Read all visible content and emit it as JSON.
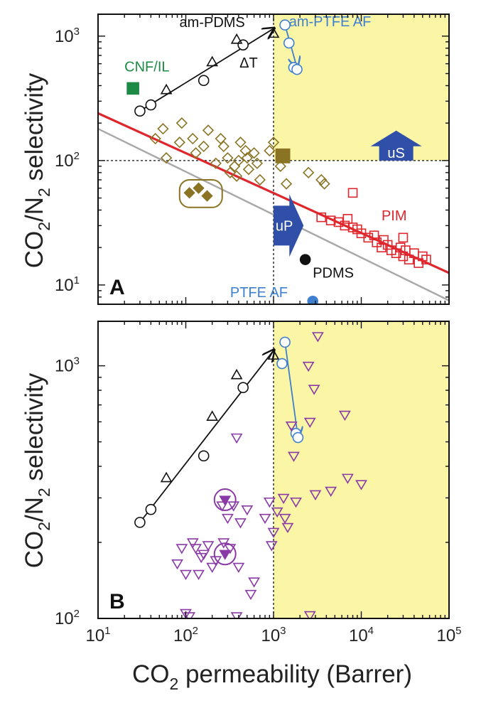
{
  "chart_data": {
    "type": "scatter",
    "xlabel": {
      "main": "CO",
      "sub": "2",
      "rest": " permeability (Barrer)"
    },
    "ylabel": {
      "pre": "CO",
      "sub1": "2",
      "mid": "/N",
      "sub2": "2",
      "post": " selectivity"
    },
    "xscale": "log",
    "yscale": "log",
    "xlim": [
      10,
      100000
    ],
    "x_ticks": [
      {
        "v": 10,
        "base": "10",
        "exp": "1"
      },
      {
        "v": 100,
        "base": "10",
        "exp": "2"
      },
      {
        "v": 1000,
        "base": "10",
        "exp": "3"
      },
      {
        "v": 10000,
        "base": "10",
        "exp": "4"
      },
      {
        "v": 100000,
        "base": "10",
        "exp": "5"
      }
    ],
    "colors": {
      "highlight": "#fbf5a6",
      "black": "#111111",
      "am_ptfe": "#3f7fd0",
      "green": "#1d8a46",
      "olive": "#8a7424",
      "olive_fill": "#8a7424",
      "red": "#e0262d",
      "gray": "#a8a8a8",
      "blue_arrow": "#2f4fa8",
      "purple": "#8a3aa6"
    },
    "panels": [
      {
        "letter": "A",
        "ylim": [
          7,
          1500
        ],
        "y_ticks": [
          {
            "v": 10,
            "base": "10",
            "exp": "1"
          },
          {
            "v": 100,
            "base": "10",
            "exp": "2"
          },
          {
            "v": 1000,
            "base": "10",
            "exp": "3"
          }
        ],
        "highlight_region": {
          "x_from": 1000,
          "y_from": 100
        },
        "dotted_lines": {
          "x": 1000,
          "y": 100
        },
        "upper_bound_lines": [
          {
            "name": "red line",
            "color": "red",
            "points": [
              [
                10,
                240
              ],
              [
                100000,
                12.5
              ]
            ]
          },
          {
            "name": "gray line",
            "color": "gray",
            "points": [
              [
                10,
                180
              ],
              [
                100000,
                7.5
              ]
            ]
          }
        ],
        "series": [
          {
            "marker": "circle",
            "color": "black",
            "points": [
              [
                30,
                250
              ],
              [
                40,
                280
              ],
              [
                160,
                440
              ],
              [
                450,
                850
              ]
            ]
          },
          {
            "marker": "triangle",
            "color": "black",
            "points": [
              [
                60,
                370
              ],
              [
                200,
                620
              ],
              [
                380,
                940
              ],
              [
                1000,
                1050
              ]
            ]
          },
          {
            "marker": "circle",
            "color": "am_ptfe",
            "points": [
              [
                1350,
                1230
              ],
              [
                1500,
                880
              ],
              [
                1700,
                560
              ],
              [
                1850,
                540
              ]
            ]
          },
          {
            "marker": "square-filled",
            "color": "green",
            "points": [
              [
                25,
                380
              ]
            ]
          },
          {
            "marker": "diamond",
            "color": "olive",
            "points": [
              [
                45,
                150
              ],
              [
                55,
                180
              ],
              [
                60,
                105
              ],
              [
                85,
                140
              ],
              [
                90,
                200
              ],
              [
                120,
                150
              ],
              [
                130,
                115
              ],
              [
                160,
                130
              ],
              [
                180,
                175
              ],
              [
                220,
                95
              ],
              [
                250,
                150
              ],
              [
                270,
                130
              ],
              [
                300,
                105
              ],
              [
                320,
                80
              ],
              [
                360,
                90
              ],
              [
                380,
                75
              ],
              [
                400,
                100
              ],
              [
                420,
                140
              ],
              [
                480,
                120
              ],
              [
                500,
                105
              ],
              [
                520,
                85
              ],
              [
                600,
                115
              ],
              [
                650,
                95
              ],
              [
                700,
                70
              ],
              [
                900,
                120
              ],
              [
                1000,
                140
              ],
              [
                1200,
                90
              ],
              [
                1400,
                65
              ],
              [
                2500,
                80
              ],
              [
                3500,
                70
              ],
              [
                3800,
                65
              ]
            ]
          },
          {
            "marker": "diamond-filled",
            "color": "olive",
            "points": [
              [
                110,
                55
              ],
              [
                140,
                60
              ],
              [
                175,
                52
              ]
            ]
          },
          {
            "marker": "square",
            "color": "red",
            "points": [
              [
                3500,
                35
              ],
              [
                4500,
                33
              ],
              [
                5500,
                32
              ],
              [
                6500,
                30
              ],
              [
                7000,
                34
              ],
              [
                8000,
                29
              ],
              [
                9000,
                28
              ],
              [
                10000,
                26
              ],
              [
                12000,
                24
              ],
              [
                14000,
                25
              ],
              [
                15000,
                22
              ],
              [
                17000,
                20
              ],
              [
                18000,
                23
              ],
              [
                20000,
                21
              ],
              [
                22000,
                19
              ],
              [
                25000,
                18
              ],
              [
                28000,
                20
              ],
              [
                30000,
                17
              ],
              [
                32000,
                19
              ],
              [
                35000,
                16
              ],
              [
                40000,
                18
              ],
              [
                45000,
                15
              ],
              [
                50000,
                17
              ],
              [
                55000,
                16
              ],
              [
                8000,
                55
              ],
              [
                30000,
                24
              ]
            ]
          },
          {
            "marker": "circle-filled",
            "color": "black",
            "points": [
              [
                2300,
                16
              ]
            ]
          },
          {
            "marker": "circle-filled",
            "color": "am_ptfe",
            "points": [
              [
                2800,
                7.4
              ]
            ]
          }
        ],
        "trend_arrows": [
          {
            "color": "black",
            "points": [
              [
                30,
                250
              ],
              [
                1000,
                1150
              ]
            ]
          },
          {
            "color": "am_ptfe",
            "points": [
              [
                1350,
                1230
              ],
              [
                1850,
                560
              ]
            ]
          }
        ],
        "olive_square": {
          "x": [
            1050,
            1550
          ],
          "y": [
            95,
            125
          ]
        },
        "group_box": {
          "x": [
            85,
            260
          ],
          "y": [
            42,
            70
          ]
        },
        "uS_arrow": {
          "x_center": 25000,
          "y_base": 100,
          "y_top": 165,
          "label": "uS"
        },
        "uP_arrow": {
          "x_left": 1000,
          "x_tip": 2200,
          "y_center": 30,
          "label": "uP"
        },
        "annotations": [
          {
            "text": "am-PDMS",
            "x": 200,
            "y": 1180,
            "color": "black",
            "anchor": "middle"
          },
          {
            "text": "am-PTFE AF",
            "x": 1500,
            "y": 1200,
            "color": "am_ptfe",
            "anchor": "start"
          },
          {
            "text": "ΔT",
            "x": 520,
            "y": 560,
            "color": "black",
            "anchor": "middle"
          },
          {
            "text": "CNF/IL",
            "x": 20,
            "y": 520,
            "color": "green",
            "anchor": "start"
          },
          {
            "text": "PIM",
            "x": 17000,
            "y": 33,
            "color": "red",
            "anchor": "start"
          },
          {
            "text": "PDMS",
            "x": 2800,
            "y": 11.5,
            "color": "black",
            "anchor": "start"
          },
          {
            "text": "PTFE AF",
            "x": 320,
            "y": 8.0,
            "color": "am_ptfe",
            "anchor": "start"
          }
        ]
      },
      {
        "letter": "B",
        "ylim": [
          100,
          1500
        ],
        "y_ticks": [
          {
            "v": 100,
            "base": "10",
            "exp": "2"
          },
          {
            "v": 1000,
            "base": "10",
            "exp": "3"
          }
        ],
        "highlight_region": {
          "x_from": 1000,
          "y_from": 100
        },
        "dotted_lines": {
          "x": 1000
        },
        "series": [
          {
            "marker": "circle",
            "color": "black",
            "points": [
              [
                30,
                240
              ],
              [
                40,
                270
              ],
              [
                160,
                440
              ],
              [
                450,
                820
              ]
            ]
          },
          {
            "marker": "triangle",
            "color": "black",
            "points": [
              [
                60,
                360
              ],
              [
                200,
                630
              ],
              [
                380,
                920
              ],
              [
                1000,
                1100
              ]
            ]
          },
          {
            "marker": "circle",
            "color": "am_ptfe",
            "points": [
              [
                1250,
                1020
              ],
              [
                1350,
                1240
              ],
              [
                1800,
                540
              ],
              [
                1900,
                520
              ]
            ]
          },
          {
            "marker": "triangle-down",
            "color": "purple",
            "points": [
              [
                80,
                165
              ],
              [
                90,
                190
              ],
              [
                100,
                150
              ],
              [
                120,
                200
              ],
              [
                130,
                190
              ],
              [
                140,
                150
              ],
              [
                150,
                175
              ],
              [
                160,
                180
              ],
              [
                180,
                195
              ],
              [
                200,
                160
              ],
              [
                220,
                170
              ],
              [
                260,
                280
              ],
              [
                270,
                200
              ],
              [
                300,
                250
              ],
              [
                320,
                190
              ],
              [
                350,
                280
              ],
              [
                380,
                520
              ],
              [
                400,
                160
              ],
              [
                420,
                240
              ],
              [
                500,
                270
              ],
              [
                550,
                125
              ],
              [
                600,
                140
              ],
              [
                800,
                250
              ],
              [
                900,
                290
              ],
              [
                950,
                195
              ],
              [
                1000,
                220
              ],
              [
                1100,
                265
              ],
              [
                1300,
                300
              ],
              [
                1350,
                250
              ],
              [
                1450,
                230
              ],
              [
                1600,
                580
              ],
              [
                1700,
                440
              ],
              [
                1800,
                290
              ],
              [
                2500,
                1000
              ],
              [
                2600,
                600
              ],
              [
                2900,
                810
              ],
              [
                3000,
                310
              ],
              [
                3200,
                1310
              ],
              [
                4500,
                320
              ],
              [
                6500,
                640
              ],
              [
                7000,
                360
              ],
              [
                10000,
                340
              ],
              [
                100,
                105
              ],
              [
                110,
                102
              ],
              [
                380,
                102
              ],
              [
                2600,
                103
              ]
            ]
          },
          {
            "marker": "triangle-down-filled",
            "color": "purple",
            "points": [
              [
                280,
                295
              ],
              [
                280,
                180
              ]
            ]
          }
        ],
        "circled_points": [
          [
            280,
            295
          ],
          [
            280,
            180
          ]
        ],
        "trend_arrows": [
          {
            "color": "black",
            "points": [
              [
                30,
                240
              ],
              [
                1000,
                1150
              ]
            ]
          },
          {
            "color": "am_ptfe",
            "points": [
              [
                1350,
                1240
              ],
              [
                1900,
                520
              ]
            ]
          }
        ],
        "annotations": []
      }
    ]
  }
}
